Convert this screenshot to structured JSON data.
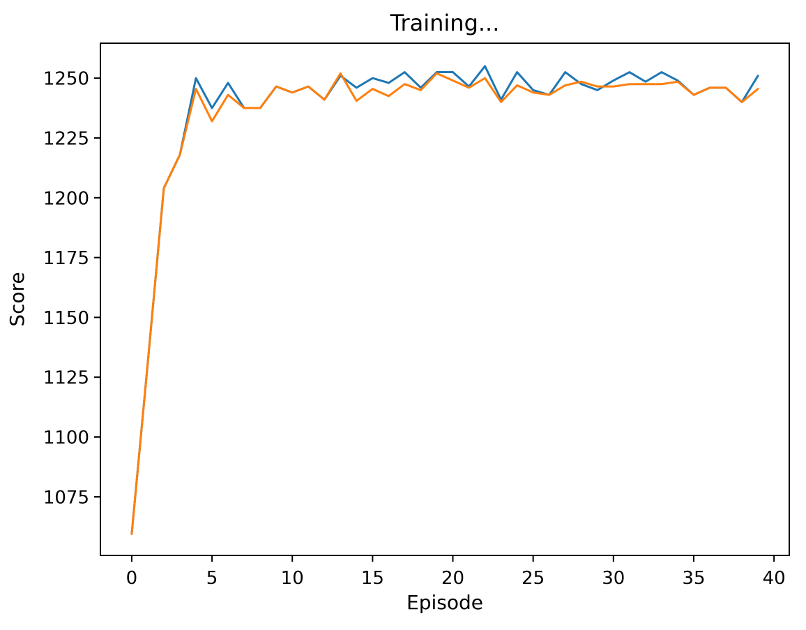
{
  "chart_data": {
    "type": "line",
    "title": "Training...",
    "xlabel": "Episode",
    "ylabel": "Score",
    "x": [
      0,
      1,
      2,
      3,
      4,
      5,
      6,
      7,
      8,
      9,
      10,
      11,
      12,
      13,
      14,
      15,
      16,
      17,
      18,
      19,
      20,
      21,
      22,
      23,
      24,
      25,
      26,
      27,
      28,
      29,
      30,
      31,
      32,
      33,
      34,
      35,
      36,
      37,
      38,
      39
    ],
    "series": [
      {
        "name": "series-blue",
        "color": "#1f77b4",
        "values": [
          1059.5,
          1131,
          1204,
          1218,
          1250,
          1237.5,
          1248,
          1237.5,
          1237.5,
          1246.5,
          1244,
          1246.5,
          1241,
          1251,
          1246,
          1250,
          1248,
          1252.5,
          1246,
          1252.5,
          1252.5,
          1246.5,
          1255,
          1241,
          1252.5,
          1245,
          1243,
          1252.5,
          1247.5,
          1245,
          1249,
          1252.5,
          1248.5,
          1252.5,
          1249,
          1243,
          1246,
          1246,
          1240,
          1251
        ]
      },
      {
        "name": "series-orange",
        "color": "#ff7f0e",
        "values": [
          1059.5,
          1131,
          1204,
          1218,
          1245.5,
          1232,
          1243,
          1237.5,
          1237.5,
          1246.5,
          1244,
          1246.5,
          1241,
          1252,
          1240.5,
          1245.5,
          1242.5,
          1247.5,
          1245,
          1252,
          1249,
          1246,
          1250,
          1240,
          1247,
          1244,
          1243,
          1247,
          1248.5,
          1246.5,
          1246.5,
          1247.5,
          1247.5,
          1247.5,
          1248.5,
          1243,
          1246,
          1246,
          1240,
          1245.5
        ]
      }
    ],
    "xticks": [
      0,
      5,
      10,
      15,
      20,
      25,
      30,
      35,
      40
    ],
    "yticks": [
      1075,
      1100,
      1125,
      1150,
      1175,
      1200,
      1225,
      1250
    ],
    "xlim": [
      -1.95,
      40.95
    ],
    "ylim": [
      1050.5,
      1264.6
    ],
    "grid": false,
    "legend": null,
    "background_color": "#ffffff",
    "axis_color": "#000000"
  }
}
